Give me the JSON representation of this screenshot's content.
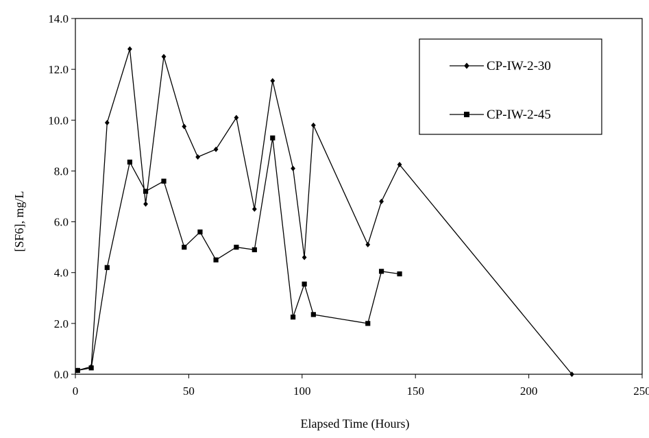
{
  "chart_data": {
    "type": "line",
    "title": "",
    "xlabel": "Elapsed Time (Hours)",
    "ylabel": "[SF6], mg/L",
    "xlim": [
      0,
      250
    ],
    "ylim": [
      0,
      14
    ],
    "x_ticks": [
      0,
      50,
      100,
      150,
      200,
      250
    ],
    "x_tick_labels": [
      "0",
      "50",
      "100",
      "150",
      "200",
      "250"
    ],
    "y_ticks": [
      0,
      2,
      4,
      6,
      8,
      10,
      12,
      14
    ],
    "y_tick_labels": [
      "0.0",
      "2.0",
      "4.0",
      "6.0",
      "8.0",
      "10.0",
      "12.0",
      "14.0"
    ],
    "grid": false,
    "legend_position": "top-right",
    "series": [
      {
        "name": "CP-IW-2-30",
        "marker": "diamond",
        "color": "#000000",
        "points": [
          [
            1,
            0.15
          ],
          [
            7,
            0.3
          ],
          [
            14,
            9.9
          ],
          [
            24,
            12.8
          ],
          [
            31,
            6.7
          ],
          [
            39,
            12.5
          ],
          [
            48,
            9.75
          ],
          [
            54,
            8.55
          ],
          [
            62,
            8.85
          ],
          [
            71,
            10.1
          ],
          [
            79,
            6.5
          ],
          [
            87,
            11.55
          ],
          [
            96,
            8.1
          ],
          [
            101,
            4.6
          ],
          [
            105,
            9.8
          ],
          [
            129,
            5.1
          ],
          [
            135,
            6.8
          ],
          [
            143,
            8.25
          ],
          [
            219,
            0.0
          ]
        ]
      },
      {
        "name": "CP-IW-2-45",
        "marker": "square",
        "color": "#000000",
        "points": [
          [
            1,
            0.15
          ],
          [
            7,
            0.25
          ],
          [
            14,
            4.2
          ],
          [
            24,
            8.35
          ],
          [
            31,
            7.2
          ],
          [
            39,
            7.6
          ],
          [
            48,
            5.0
          ],
          [
            55,
            5.6
          ],
          [
            62,
            4.5
          ],
          [
            71,
            5.0
          ],
          [
            79,
            4.9
          ],
          [
            87,
            9.3
          ],
          [
            96,
            2.25
          ],
          [
            101,
            3.55
          ],
          [
            105,
            2.35
          ],
          [
            129,
            2.0
          ],
          [
            135,
            4.05
          ],
          [
            143,
            3.95
          ]
        ]
      }
    ]
  }
}
